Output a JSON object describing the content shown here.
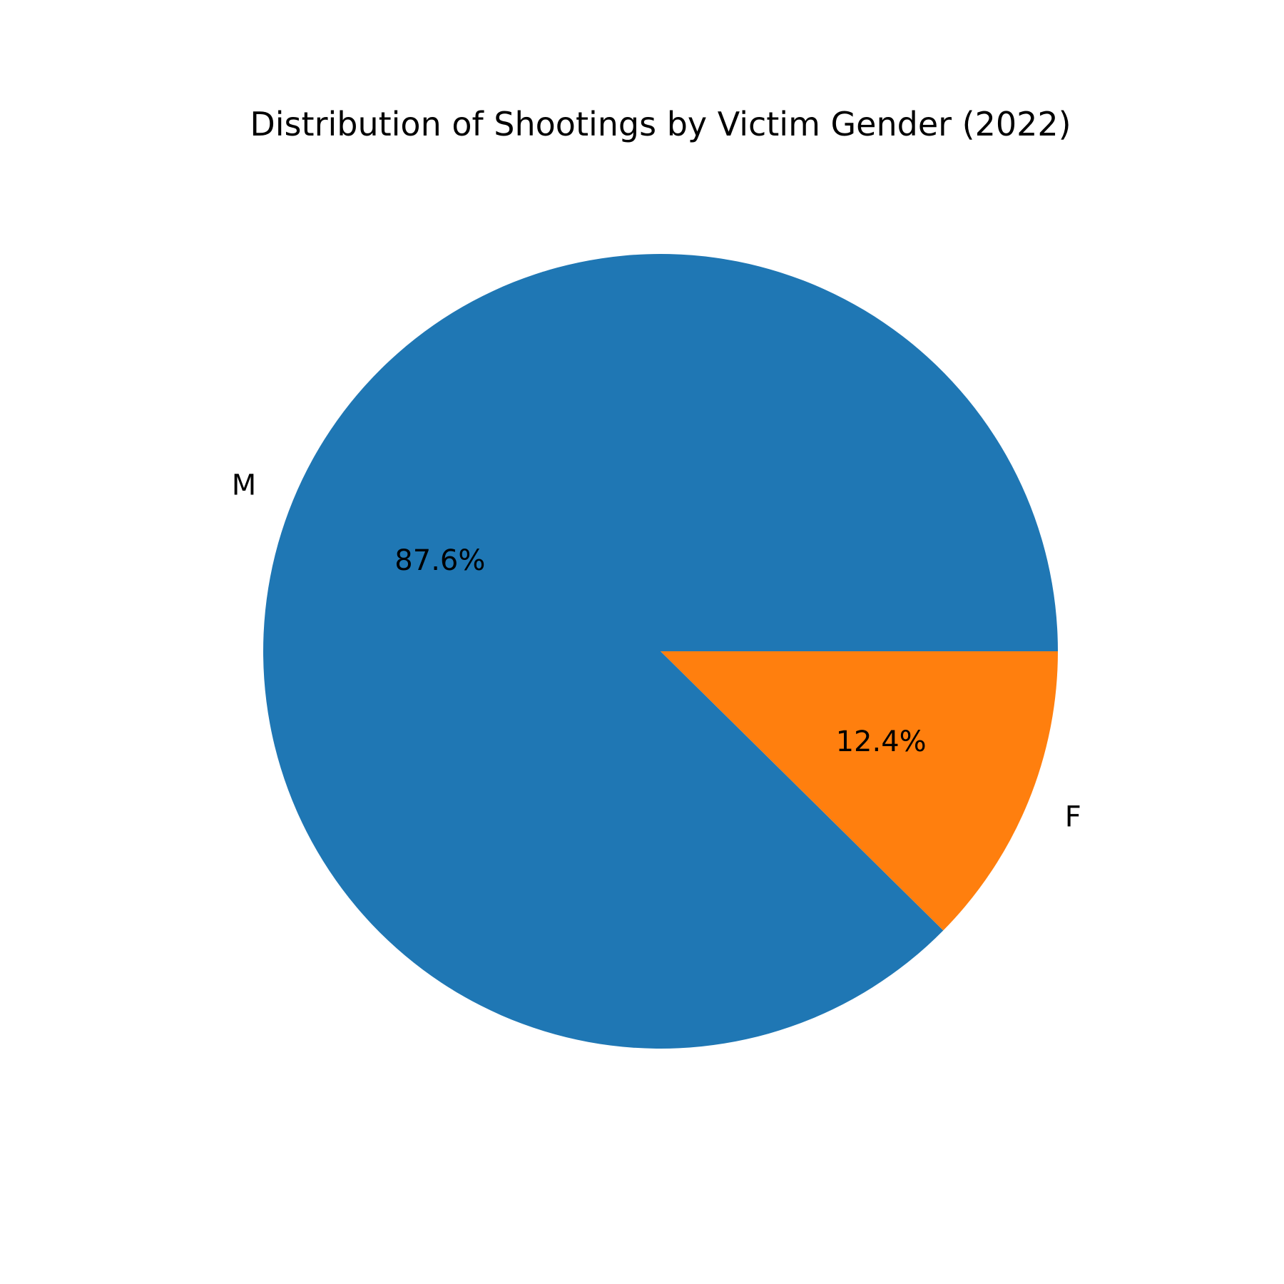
{
  "chart_data": {
    "type": "pie",
    "title": "Distribution of Shootings by Victim Gender (2022)",
    "categories": [
      "M",
      "F"
    ],
    "values": [
      87.6,
      12.4
    ],
    "value_labels": [
      "87.6%",
      "12.4%"
    ],
    "colors": [
      "#1f77b4",
      "#ff7f0e"
    ],
    "start_angle_deg": 0,
    "direction": "counterclockwise",
    "legend": "none"
  }
}
